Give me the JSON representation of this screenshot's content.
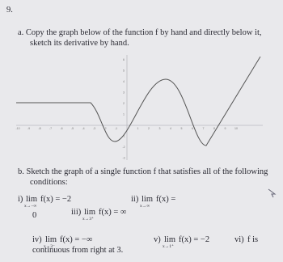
{
  "problem_number": "9.",
  "part_a": {
    "text": "a. Copy the graph below of the function f by hand and directly below it, sketch its derivative by hand.",
    "graph": {
      "x_ticks": [
        -10,
        -9,
        -8,
        -7,
        -6,
        -5,
        -4,
        -3,
        -2,
        -1,
        1,
        2,
        3,
        4,
        5,
        6,
        7,
        8,
        9,
        10
      ],
      "y_ticks": [
        -3,
        -2,
        -1,
        1,
        2,
        3,
        4,
        5,
        6
      ]
    }
  },
  "part_b": {
    "text": "b. Sketch the graph of a single function f that satisfies all of the following conditions:",
    "conditions": [
      {
        "label": "i)",
        "lim": "lim",
        "sub": "x→−∞",
        "expr": "f(x) = −2"
      },
      {
        "label": "ii)",
        "lim": "lim",
        "sub": "x→∞",
        "expr": "f(x) =",
        "expr_end": "0"
      },
      {
        "label": "iii)",
        "lim": "lim",
        "sub": "x→3⁺",
        "expr": "f(x) = ∞"
      },
      {
        "label": "iv)",
        "lim": "lim",
        "sub": "x→3⁻",
        "expr": "f(x) = −∞"
      },
      {
        "label": "v)",
        "lim": "lim",
        "sub": "x→1⁺",
        "expr": "f(x) = −2"
      },
      {
        "label": "vi)",
        "expr": "f is",
        "expr_end": "continuous from right at 3."
      }
    ]
  }
}
